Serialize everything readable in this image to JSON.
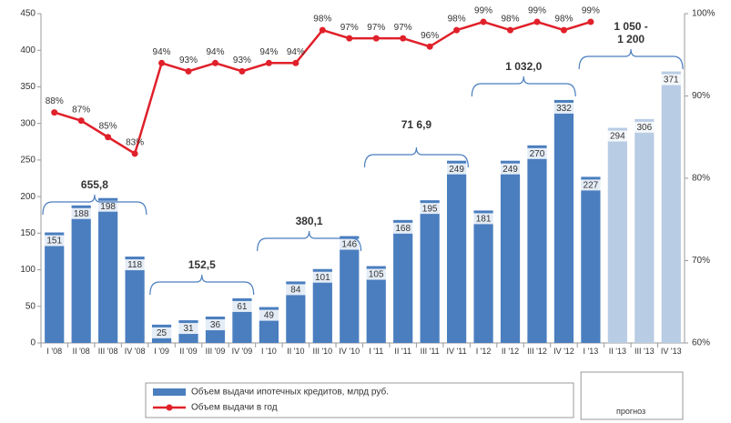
{
  "chart_data": {
    "type": "bar_line",
    "categories": [
      "I '08",
      "II '08",
      "III '08",
      "IV '08",
      "I '09",
      "II '09",
      "III '09",
      "IV '09",
      "I '10",
      "II '10",
      "III '10",
      "IV '10",
      "I '11",
      "II '11",
      "III '11",
      "IV '11",
      "I '12",
      "II '12",
      "III '12",
      "IV '12",
      "I '13",
      "II '13",
      "III '13",
      "IV '13"
    ],
    "series": [
      {
        "name": "Объем выдачи ипотечных кредитов, млрд руб.",
        "type": "bar",
        "color": "#4a7ebf",
        "colors": [
          "#4a7ebf",
          "#4a7ebf",
          "#4a7ebf",
          "#4a7ebf",
          "#4a7ebf",
          "#4a7ebf",
          "#4a7ebf",
          "#4a7ebf",
          "#4a7ebf",
          "#4a7ebf",
          "#4a7ebf",
          "#4a7ebf",
          "#4a7ebf",
          "#4a7ebf",
          "#4a7ebf",
          "#4a7ebf",
          "#4a7ebf",
          "#4a7ebf",
          "#4a7ebf",
          "#4a7ebf",
          "#4a7ebf",
          "#b8cce4",
          "#b8cce4",
          "#b8cce4"
        ],
        "values": [
          151,
          188,
          198,
          118,
          25,
          31,
          36,
          61,
          49,
          84,
          101,
          146,
          105,
          168,
          195,
          249,
          181,
          249,
          270,
          332,
          227,
          294,
          306,
          371
        ]
      },
      {
        "name": "Объем выдачи в год",
        "type": "line",
        "axis": "y2",
        "color": "#e0202a",
        "values": [
          88,
          87,
          85,
          83,
          94,
          93,
          94,
          93,
          94,
          94,
          98,
          97,
          97,
          97,
          96,
          98,
          99,
          98,
          99,
          98,
          99,
          null,
          null,
          null
        ],
        "value_labels": [
          "88%",
          "87%",
          "85%",
          "83%",
          "94%",
          "93%",
          "94%",
          "93%",
          "94%",
          "94%",
          "98%",
          "97%",
          "97%",
          "97%",
          "96%",
          "98%",
          "99%",
          "98%",
          "99%",
          "98%",
          "99%",
          null,
          null,
          null
        ]
      }
    ],
    "ylim": [
      0,
      450
    ],
    "yticks": [
      0,
      50,
      100,
      150,
      200,
      250,
      300,
      350,
      400,
      450
    ],
    "y2lim": [
      60,
      100
    ],
    "y2ticks": [
      {
        "value": 60,
        "label": "60%"
      },
      {
        "value": 70,
        "label": "70%"
      },
      {
        "value": 80,
        "label": "80%"
      },
      {
        "value": 90,
        "label": "90%"
      },
      {
        "value": 100,
        "label": "100%"
      }
    ],
    "annotations": [
      "655,8",
      "152,5",
      "380,1",
      "71 6,9",
      "1 032,0",
      "1 050 - 1 200",
      "прогноз"
    ],
    "legend": "bottom"
  }
}
